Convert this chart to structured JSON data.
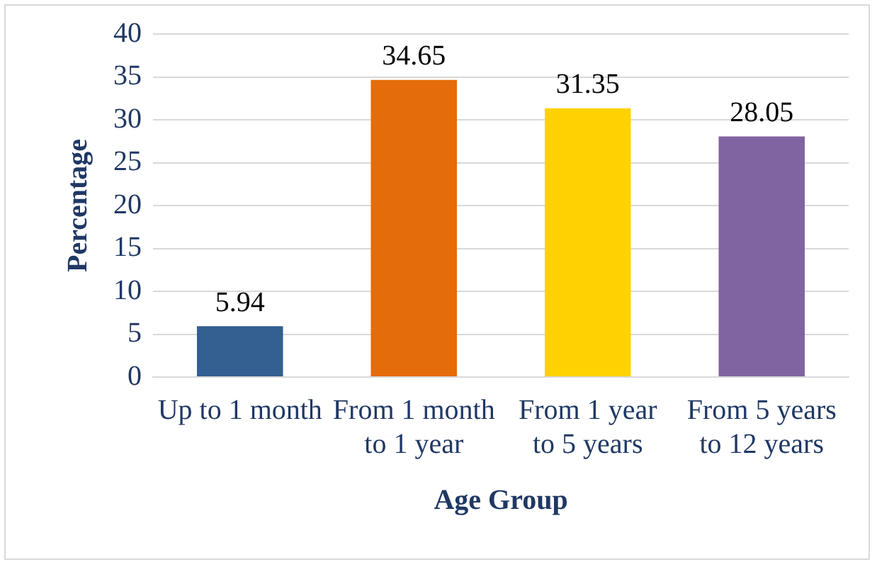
{
  "chart_data": {
    "type": "bar",
    "xlabel": "Age Group",
    "ylabel": "Percentage",
    "categories": [
      "Up to 1 month",
      "From 1 month to 1 year",
      "From 1 year to 5 years",
      "From 5 years to 12 years"
    ],
    "values": [
      5.94,
      34.65,
      31.35,
      28.05
    ],
    "colors": [
      "#335f91",
      "#e46c0a",
      "#ffd200",
      "#8064a2"
    ],
    "ylim": [
      0,
      40
    ],
    "yticks": [
      0,
      5,
      10,
      15,
      20,
      25,
      30,
      35,
      40
    ],
    "grid": "y",
    "data_labels": true,
    "legend": false
  }
}
